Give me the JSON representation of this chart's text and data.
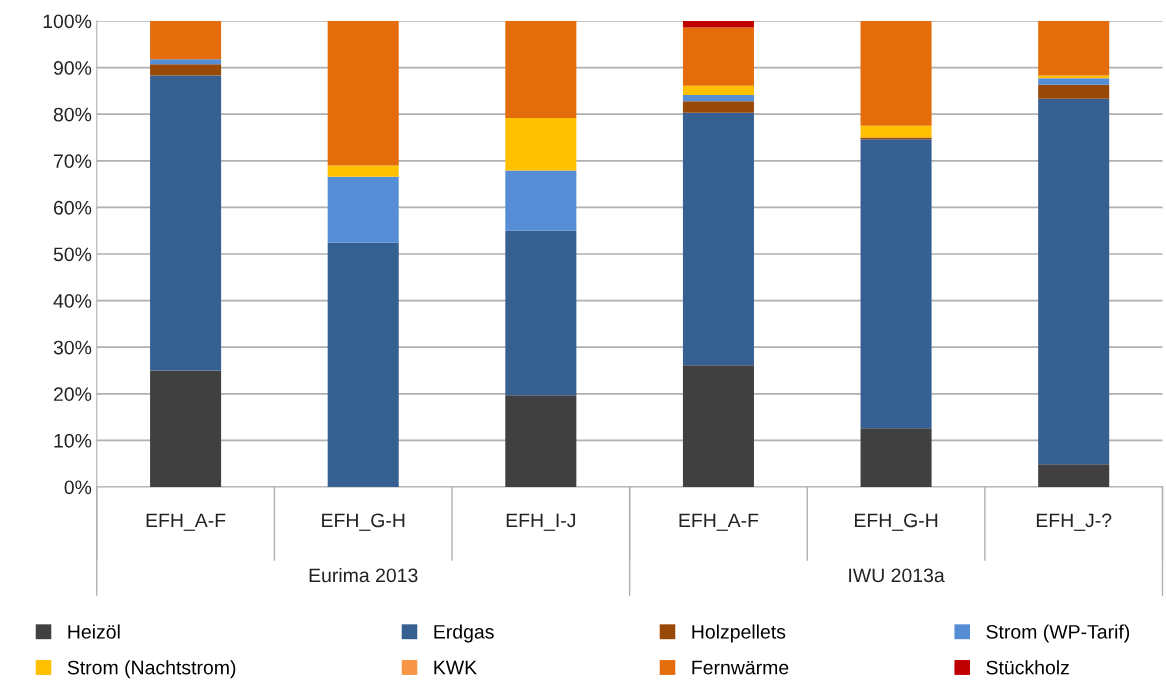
{
  "chart_data": {
    "type": "bar",
    "stacked": true,
    "categories": [
      "EFH_A-F",
      "EFH_G-H",
      "EFH_I-J",
      "EFH_A-F",
      "EFH_G-H",
      "EFH_J-?"
    ],
    "series": [
      {
        "name": "Heizöl",
        "color": "#404040",
        "values": [
          25.0,
          0,
          19.7,
          26.1,
          12.6,
          4.9
        ]
      },
      {
        "name": "Erdgas",
        "color": "#376092",
        "values": [
          63.3,
          52.4,
          35.3,
          54.2,
          62.0,
          78.4
        ]
      },
      {
        "name": "Holzpellets",
        "color": "#984807",
        "values": [
          2.4,
          0,
          0,
          2.5,
          0.4,
          3.0
        ]
      },
      {
        "name": "Strom (WP-Tarif)",
        "color": "#558ed5",
        "values": [
          1.1,
          14.2,
          12.9,
          1.3,
          0,
          1.4
        ]
      },
      {
        "name": "Strom (Nachtstrom)",
        "color": "#ffc000",
        "values": [
          0,
          2.4,
          11.3,
          2.0,
          2.5,
          0.6
        ]
      },
      {
        "name": "KWK",
        "color": "#f79646",
        "values": [
          0,
          0,
          0,
          0,
          0,
          0
        ]
      },
      {
        "name": "Fernwärme",
        "color": "#e46c0a",
        "values": [
          8.2,
          31.0,
          20.8,
          12.5,
          22.5,
          11.7
        ]
      },
      {
        "name": "Stückholz",
        "color": "#c00000",
        "values": [
          0,
          0,
          0,
          1.4,
          0,
          0
        ]
      }
    ],
    "ylim": [
      0,
      100
    ],
    "yticks": [
      {
        "value": 0,
        "label": "0%"
      },
      {
        "value": 10,
        "label": "10%"
      },
      {
        "value": 20,
        "label": "20%"
      },
      {
        "value": 30,
        "label": "30%"
      },
      {
        "value": 40,
        "label": "40%"
      },
      {
        "value": 50,
        "label": "50%"
      },
      {
        "value": 60,
        "label": "60%"
      },
      {
        "value": 70,
        "label": "70%"
      },
      {
        "value": 80,
        "label": "80%"
      },
      {
        "value": 90,
        "label": "90%"
      },
      {
        "value": 100,
        "label": "100%"
      }
    ],
    "annotations": [
      "Eurima 2013",
      "IWU 2013a"
    ],
    "grid": "y",
    "legend": "bottom"
  }
}
